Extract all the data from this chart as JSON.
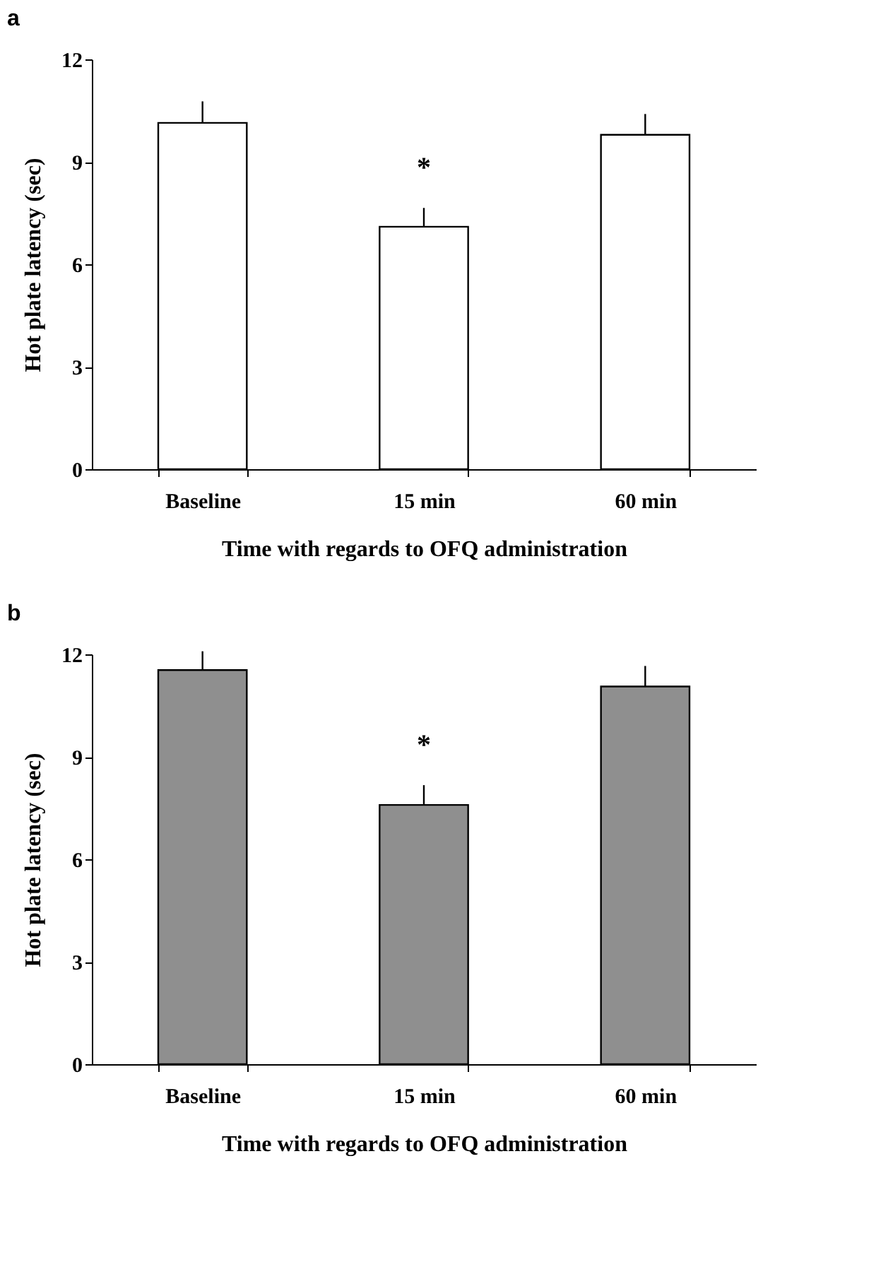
{
  "chart_data": [
    {
      "type": "bar",
      "title": "a",
      "xlabel": "Time with regards to OFQ administration",
      "ylabel": "Hot plate latency (sec)",
      "categories": [
        "Baseline",
        "15 min",
        "60 min"
      ],
      "values": [
        10.14,
        7.1,
        9.79
      ],
      "errors": [
        [
          10.14,
          10.77
        ],
        [
          7.1,
          7.65
        ],
        [
          9.79,
          10.4
        ]
      ],
      "color": "#ffffff",
      "ylim": [
        0,
        12
      ],
      "yticks": [
        0,
        3,
        6,
        9,
        12
      ],
      "grid": false,
      "annotations": [
        {
          "text": "*",
          "x": "15 min",
          "y": 7.65
        }
      ]
    },
    {
      "type": "bar",
      "title": "b",
      "xlabel": "Time with regards to OFQ administration",
      "ylabel": "Hot plate latency (sec)",
      "categories": [
        "Baseline",
        "15 min",
        "60 min"
      ],
      "values": [
        11.54,
        7.59,
        11.06
      ],
      "errors": [
        [
          11.54,
          12.09
        ],
        [
          7.59,
          8.17
        ],
        [
          11.06,
          11.66
        ]
      ],
      "color": "#8f8f8f",
      "ylim": [
        0,
        12
      ],
      "yticks": [
        0,
        3,
        6,
        9,
        12
      ],
      "grid": false,
      "annotations": [
        {
          "text": "*",
          "x": "15 min",
          "y": 8.17
        }
      ]
    }
  ]
}
